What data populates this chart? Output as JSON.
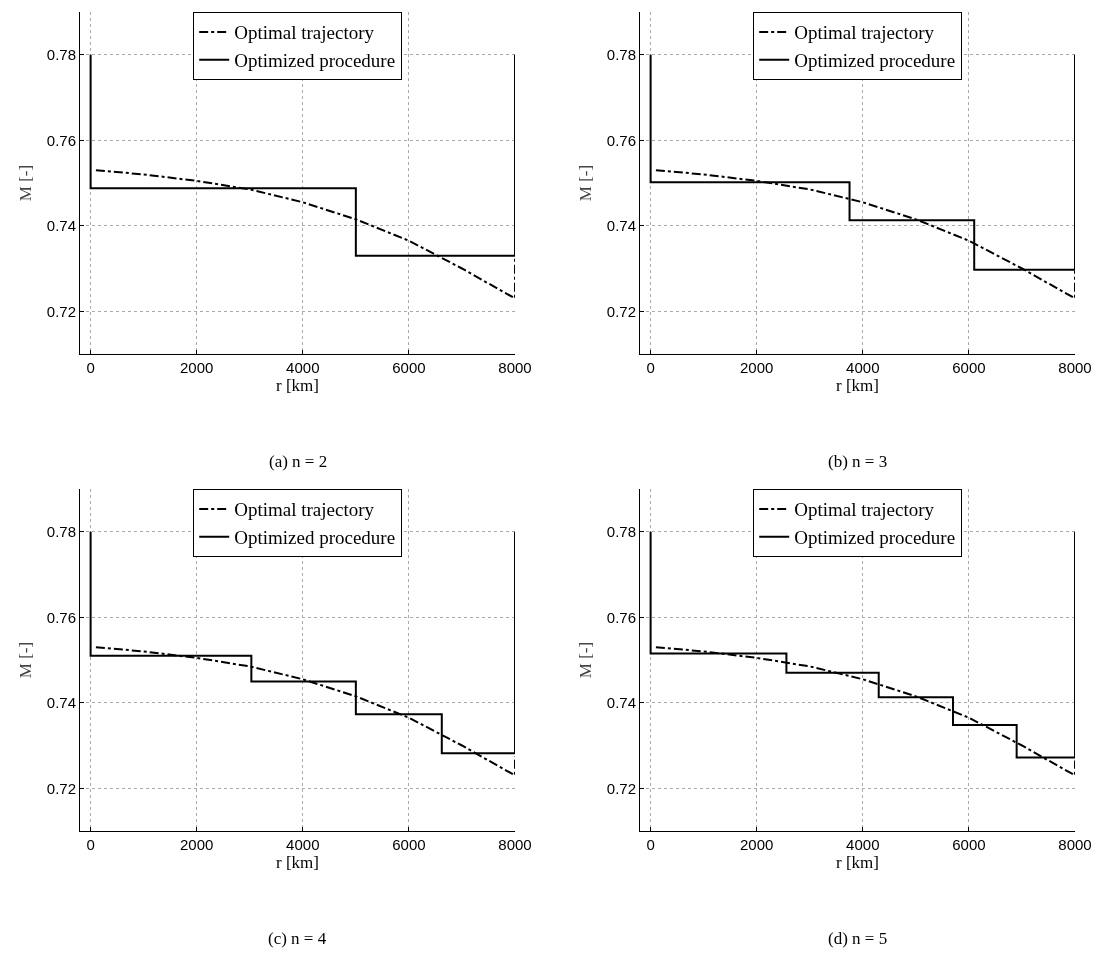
{
  "chart_data": [
    {
      "type": "line",
      "xlabel": "r [km]",
      "ylabel": "M [-]",
      "annotations": [
        "(a) n = 2"
      ],
      "xlim": [
        -200,
        8000
      ],
      "ylim": [
        0.71,
        0.79
      ],
      "xticks": [
        0,
        2000,
        4000,
        6000,
        8000
      ],
      "yticks": [
        0.72,
        0.74,
        0.76,
        0.78
      ],
      "grid": true,
      "legend": "top",
      "marker": "none",
      "series": [
        {
          "name": "Optimal trajectory",
          "color": "#000000",
          "line_style": "dashdot",
          "x": [
            100,
            1000,
            2000,
            3000,
            4000,
            5000,
            6000,
            7000,
            8000,
            8000
          ],
          "values": [
            0.753,
            0.752,
            0.7505,
            0.7485,
            0.7455,
            0.7415,
            0.7365,
            0.73,
            0.723,
            0.7325
          ]
        },
        {
          "name": "Optimized procedure",
          "color": "#000000",
          "line_style": "solid",
          "x": [
            0,
            0,
            5000,
            5000,
            8000,
            8000
          ],
          "values": [
            0.78,
            0.7488,
            0.7488,
            0.733,
            0.733,
            0.78
          ]
        }
      ]
    },
    {
      "type": "line",
      "xlabel": "r [km]",
      "ylabel": "M [-]",
      "annotations": [
        "(b) n = 3"
      ],
      "xlim": [
        -200,
        8000
      ],
      "ylim": [
        0.71,
        0.79
      ],
      "xticks": [
        0,
        2000,
        4000,
        6000,
        8000
      ],
      "yticks": [
        0.72,
        0.74,
        0.76,
        0.78
      ],
      "grid": true,
      "legend": "top",
      "marker": "none",
      "series": [
        {
          "name": "Optimal trajectory",
          "color": "#000000",
          "line_style": "dashdot",
          "x": [
            100,
            1000,
            2000,
            3000,
            4000,
            5000,
            6000,
            7000,
            8000,
            8000
          ],
          "values": [
            0.753,
            0.752,
            0.7505,
            0.7485,
            0.7455,
            0.7415,
            0.7365,
            0.73,
            0.723,
            0.7295
          ]
        },
        {
          "name": "Optimized procedure",
          "color": "#000000",
          "line_style": "solid",
          "x": [
            0,
            0,
            3750,
            3750,
            6100,
            6100,
            8000,
            8000
          ],
          "values": [
            0.78,
            0.7502,
            0.7502,
            0.7413,
            0.7413,
            0.7297,
            0.7297,
            0.78
          ]
        }
      ]
    },
    {
      "type": "line",
      "xlabel": "r [km]",
      "ylabel": "M [-]",
      "annotations": [
        "(c) n = 4"
      ],
      "xlim": [
        -200,
        8000
      ],
      "ylim": [
        0.71,
        0.79
      ],
      "xticks": [
        0,
        2000,
        4000,
        6000,
        8000
      ],
      "yticks": [
        0.72,
        0.74,
        0.76,
        0.78
      ],
      "grid": true,
      "legend": "top",
      "marker": "none",
      "series": [
        {
          "name": "Optimal trajectory",
          "color": "#000000",
          "line_style": "dashdot",
          "x": [
            100,
            1000,
            2000,
            3000,
            4000,
            5000,
            6000,
            7000,
            8000,
            8000
          ],
          "values": [
            0.753,
            0.752,
            0.7505,
            0.7485,
            0.7455,
            0.7415,
            0.7365,
            0.73,
            0.723,
            0.7275
          ]
        },
        {
          "name": "Optimized procedure",
          "color": "#000000",
          "line_style": "solid",
          "x": [
            0,
            0,
            3030,
            3030,
            5000,
            5000,
            6620,
            6620,
            8000,
            8000
          ],
          "values": [
            0.78,
            0.751,
            0.751,
            0.745,
            0.745,
            0.7373,
            0.7373,
            0.7282,
            0.7282,
            0.78
          ]
        }
      ]
    },
    {
      "type": "line",
      "xlabel": "r [km]",
      "ylabel": "M [-]",
      "annotations": [
        "(d) n = 5"
      ],
      "xlim": [
        -200,
        8000
      ],
      "ylim": [
        0.71,
        0.79
      ],
      "xticks": [
        0,
        2000,
        4000,
        6000,
        8000
      ],
      "yticks": [
        0.72,
        0.74,
        0.76,
        0.78
      ],
      "grid": true,
      "legend": "top",
      "marker": "none",
      "series": [
        {
          "name": "Optimal trajectory",
          "color": "#000000",
          "line_style": "dashdot",
          "x": [
            100,
            1000,
            2000,
            3000,
            4000,
            5000,
            6000,
            7000,
            8000,
            8000
          ],
          "values": [
            0.753,
            0.752,
            0.7505,
            0.7485,
            0.7455,
            0.7415,
            0.7365,
            0.73,
            0.723,
            0.7265
          ]
        },
        {
          "name": "Optimized procedure",
          "color": "#000000",
          "line_style": "solid",
          "x": [
            0,
            0,
            2560,
            2560,
            4300,
            4300,
            5700,
            5700,
            6900,
            6900,
            8000,
            8000
          ],
          "values": [
            0.78,
            0.7515,
            0.7515,
            0.747,
            0.747,
            0.7413,
            0.7413,
            0.7348,
            0.7348,
            0.7272,
            0.7272,
            0.78
          ]
        }
      ]
    }
  ]
}
